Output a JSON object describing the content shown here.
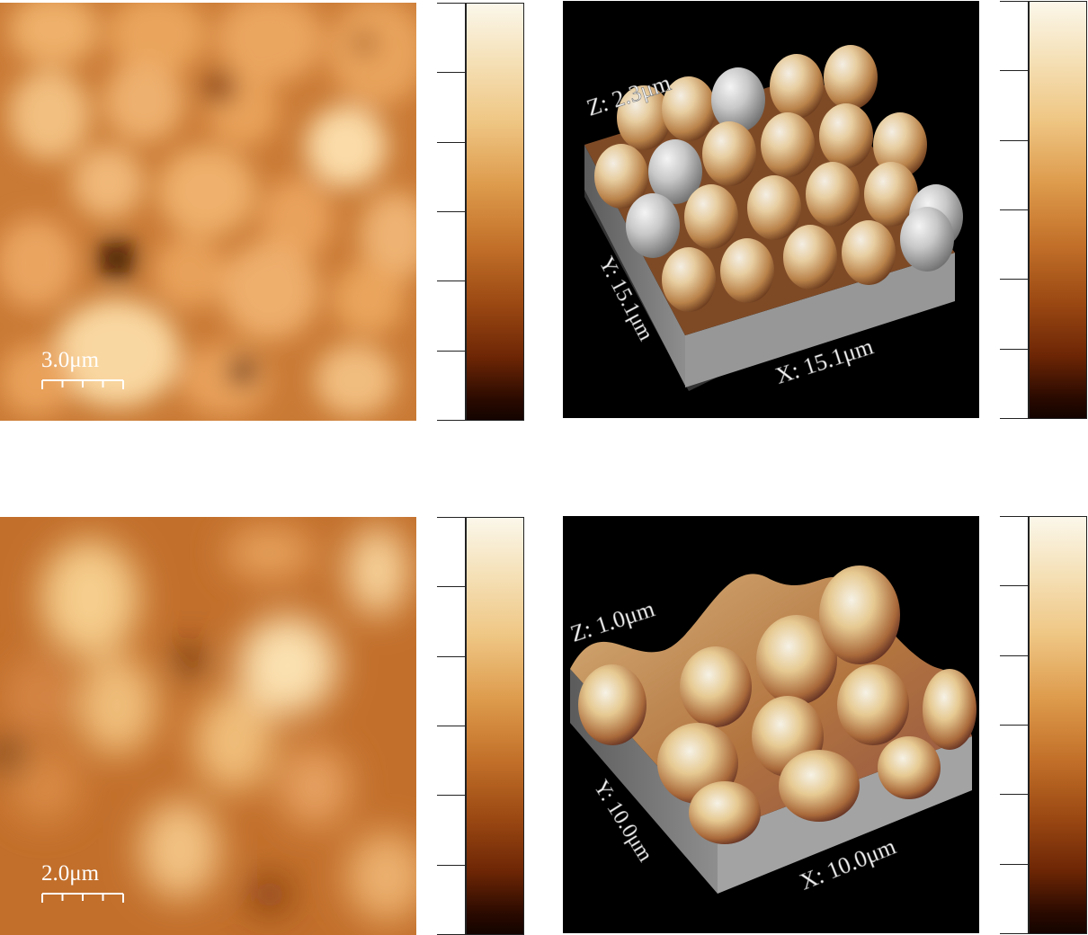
{
  "panels": {
    "top": {
      "scale_bar_label": "3.0μm",
      "z_label": "Z: 2.3μm",
      "y_label": "Y: 15.1μm",
      "x_label": "X: 15.1μm"
    },
    "bottom": {
      "scale_bar_label": "2.0μm",
      "z_label": "Z: 1.0μm",
      "y_label": "Y: 10.0μm",
      "x_label": "X: 10.0μm"
    }
  },
  "colormap": {
    "name": "afmhot-like copper",
    "colors": [
      "#fbf7ea",
      "#efc785",
      "#dd9a4b",
      "#9c4913",
      "#2b0a00"
    ]
  },
  "colorbar_ticks": 7
}
